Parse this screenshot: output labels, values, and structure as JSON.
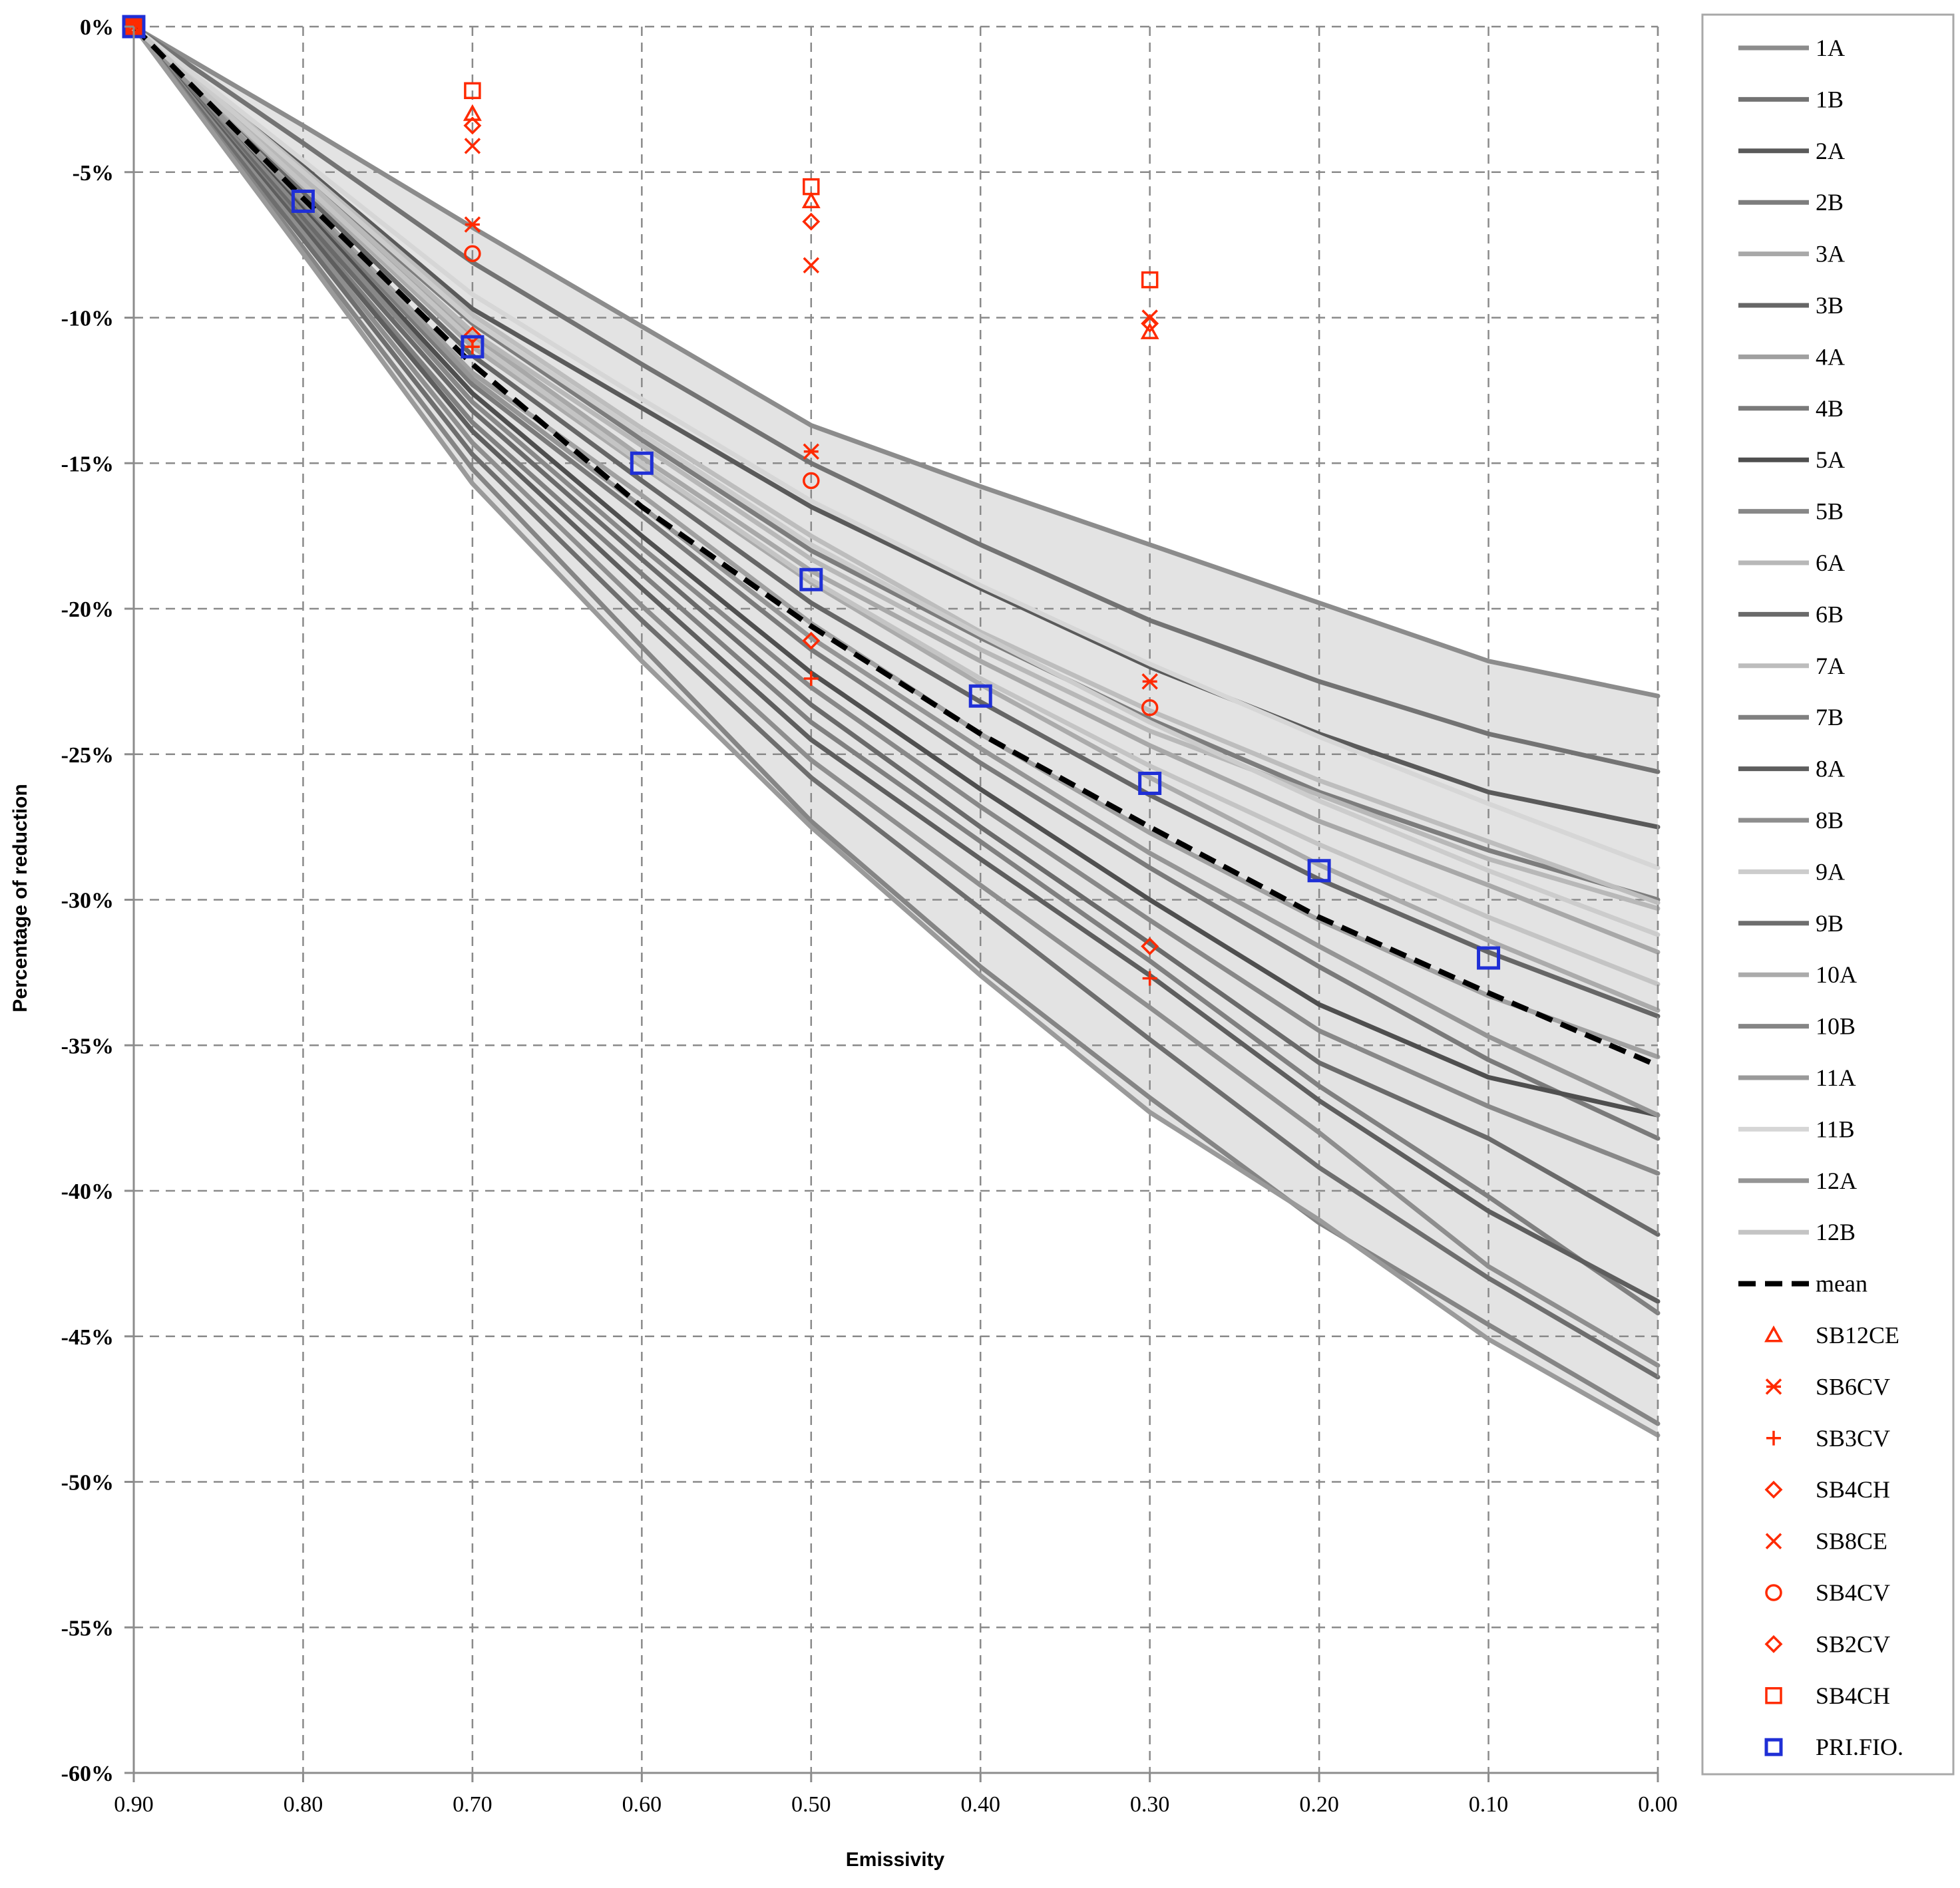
{
  "chart_data": {
    "type": "line",
    "title": "",
    "xlabel": "Emissivity",
    "ylabel": "Percentage of reduction",
    "xlim": [
      0.9,
      0.0
    ],
    "ylim": [
      -60,
      0
    ],
    "x_inverted": true,
    "grid": true,
    "legend_position": "right",
    "x_ticks": [
      "0.90",
      "0.80",
      "0.70",
      "0.60",
      "0.50",
      "0.40",
      "0.30",
      "0.20",
      "0.10",
      "0.00"
    ],
    "y_ticks": [
      "0%",
      "-5%",
      "-10%",
      "-15%",
      "-20%",
      "-25%",
      "-30%",
      "-35%",
      "-40%",
      "-45%",
      "-50%",
      "-55%",
      "-60%"
    ],
    "x": [
      0.9,
      0.8,
      0.7,
      0.6,
      0.5,
      0.4,
      0.3,
      0.2,
      0.1,
      0.0
    ],
    "series": [
      {
        "name": "1A",
        "color": "#8c8c8c",
        "values": [
          0,
          -3.4,
          -6.9,
          -10.3,
          -13.7,
          -15.8,
          -17.8,
          -19.8,
          -21.8,
          -23.0
        ]
      },
      {
        "name": "1B",
        "color": "#737373",
        "values": [
          0,
          -4.0,
          -8.1,
          -11.6,
          -15.0,
          -17.8,
          -20.4,
          -22.5,
          -24.3,
          -25.6
        ]
      },
      {
        "name": "2A",
        "color": "#5a5a5a",
        "values": [
          0,
          -4.8,
          -9.7,
          -13.1,
          -16.5,
          -19.3,
          -22.0,
          -24.3,
          -26.3,
          -27.5
        ]
      },
      {
        "name": "2B",
        "color": "#7d7d7d",
        "values": [
          0,
          -5.1,
          -10.2,
          -14.2,
          -18.0,
          -21.0,
          -23.8,
          -26.3,
          -28.3,
          -30.0
        ]
      },
      {
        "name": "3A",
        "color": "#a8a8a8",
        "values": [
          0,
          -5.3,
          -10.6,
          -14.8,
          -18.7,
          -21.8,
          -24.7,
          -27.3,
          -29.5,
          -31.8
        ]
      },
      {
        "name": "3B",
        "color": "#666666",
        "values": [
          0,
          -5.7,
          -11.3,
          -15.6,
          -19.8,
          -23.2,
          -26.4,
          -29.3,
          -31.8,
          -34.0
        ]
      },
      {
        "name": "4A",
        "color": "#a0a0a0",
        "values": [
          0,
          -5.9,
          -11.9,
          -16.1,
          -20.5,
          -24.3,
          -27.7,
          -30.7,
          -33.3,
          -35.4
        ]
      },
      {
        "name": "4B",
        "color": "#7a7a7a",
        "values": [
          0,
          -6.1,
          -12.3,
          -16.8,
          -21.4,
          -25.3,
          -28.9,
          -32.3,
          -35.5,
          -38.2
        ]
      },
      {
        "name": "5A",
        "color": "#4f4f4f",
        "values": [
          0,
          -6.3,
          -12.6,
          -17.5,
          -22.2,
          -26.2,
          -30.0,
          -33.6,
          -36.1,
          -37.4
        ]
      },
      {
        "name": "5B",
        "color": "#888888",
        "values": [
          0,
          -6.4,
          -12.9,
          -17.9,
          -22.7,
          -26.8,
          -30.7,
          -34.5,
          -37.1,
          -39.4
        ]
      },
      {
        "name": "6A",
        "color": "#b8b8b8",
        "values": [
          0,
          -5.2,
          -10.5,
          -14.4,
          -18.3,
          -21.4,
          -24.2,
          -26.4,
          -28.6,
          -30.3
        ]
      },
      {
        "name": "6B",
        "color": "#6a6a6a",
        "values": [
          0,
          -6.6,
          -13.2,
          -18.3,
          -23.3,
          -27.5,
          -31.5,
          -35.6,
          -38.2,
          -41.5
        ]
      },
      {
        "name": "7A",
        "color": "#bdbdbd",
        "values": [
          0,
          -4.9,
          -9.9,
          -13.8,
          -17.5,
          -20.8,
          -23.5,
          -25.9,
          -28.0,
          -30.1
        ]
      },
      {
        "name": "7B",
        "color": "#808080",
        "values": [
          0,
          -6.8,
          -13.6,
          -18.8,
          -23.9,
          -28.0,
          -32.1,
          -36.4,
          -40.2,
          -44.2
        ]
      },
      {
        "name": "8A",
        "color": "#5e5e5e",
        "values": [
          0,
          -6.9,
          -13.9,
          -19.3,
          -24.5,
          -28.6,
          -32.6,
          -36.9,
          -40.7,
          -43.8
        ]
      },
      {
        "name": "8B",
        "color": "#8e8e8e",
        "values": [
          0,
          -7.1,
          -14.3,
          -19.9,
          -25.2,
          -29.5,
          -33.7,
          -38.0,
          -42.6,
          -46.0
        ]
      },
      {
        "name": "9A",
        "color": "#cccccc",
        "values": [
          0,
          -5.0,
          -10.1,
          -14.0,
          -17.8,
          -20.9,
          -23.9,
          -26.6,
          -29.0,
          -31.2
        ]
      },
      {
        "name": "9B",
        "color": "#6e6e6e",
        "values": [
          0,
          -7.3,
          -14.7,
          -20.4,
          -25.8,
          -30.3,
          -34.8,
          -39.2,
          -43.0,
          -46.4
        ]
      },
      {
        "name": "10A",
        "color": "#ababab",
        "values": [
          0,
          -5.5,
          -11.0,
          -15.1,
          -19.1,
          -22.6,
          -25.8,
          -28.8,
          -31.4,
          -33.8
        ]
      },
      {
        "name": "10B",
        "color": "#858585",
        "values": [
          0,
          -7.6,
          -15.2,
          -21.3,
          -27.3,
          -32.3,
          -36.8,
          -41.1,
          -44.6,
          -48.0
        ]
      },
      {
        "name": "11A",
        "color": "#9a9a9a",
        "values": [
          0,
          -7.8,
          -15.7,
          -21.8,
          -27.5,
          -32.6,
          -37.3,
          -41.0,
          -45.1,
          -48.4
        ]
      },
      {
        "name": "11B",
        "color": "#d6d6d6",
        "values": [
          0,
          -4.6,
          -9.2,
          -12.8,
          -16.3,
          -19.2,
          -21.9,
          -24.4,
          -26.7,
          -28.9
        ]
      },
      {
        "name": "12A",
        "color": "#959595",
        "values": [
          0,
          -6.0,
          -12.1,
          -16.5,
          -21.0,
          -24.8,
          -28.4,
          -31.6,
          -34.7,
          -37.4
        ]
      },
      {
        "name": "12B",
        "color": "#c4c4c4",
        "values": [
          0,
          -5.4,
          -10.8,
          -15.0,
          -19.0,
          -22.4,
          -25.4,
          -28.1,
          -30.6,
          -32.9
        ]
      }
    ],
    "band": {
      "upper_series": "1A",
      "lower_series": "11A",
      "color": "#e0e0e0"
    },
    "mean": {
      "name": "mean",
      "color": "#000000",
      "values": [
        0,
        -5.9,
        -11.6,
        -16.5,
        -20.6,
        -24.3,
        -27.5,
        -30.6,
        -33.2,
        -35.7
      ]
    },
    "markers": [
      {
        "name": "SB12CE",
        "symbol": "triangle",
        "color": "#ff2a00",
        "points": [
          [
            0.9,
            0
          ],
          [
            0.7,
            -3.0
          ],
          [
            0.5,
            -6.0
          ],
          [
            0.3,
            -10.5
          ]
        ]
      },
      {
        "name": "SB6CV",
        "symbol": "asterisk",
        "color": "#ff2a00",
        "points": [
          [
            0.9,
            0
          ],
          [
            0.7,
            -6.8
          ],
          [
            0.5,
            -14.6
          ],
          [
            0.3,
            -22.5
          ]
        ]
      },
      {
        "name": "SB3CV",
        "symbol": "plus",
        "color": "#ff2a00",
        "points": [
          [
            0.9,
            0
          ],
          [
            0.7,
            -11.0
          ],
          [
            0.5,
            -22.4
          ],
          [
            0.3,
            -32.7
          ]
        ]
      },
      {
        "name": "SB4CH",
        "symbol": "diamond",
        "color": "#ff2a00",
        "points": [
          [
            0.9,
            0
          ],
          [
            0.7,
            -3.4
          ],
          [
            0.5,
            -6.7
          ],
          [
            0.3,
            -10.2
          ]
        ]
      },
      {
        "name": "SB8CE",
        "symbol": "cross",
        "color": "#ff2a00",
        "points": [
          [
            0.9,
            0
          ],
          [
            0.7,
            -4.1
          ],
          [
            0.5,
            -8.2
          ],
          [
            0.3,
            -10.0
          ]
        ]
      },
      {
        "name": "SB4CV",
        "symbol": "circle",
        "color": "#ff2a00",
        "points": [
          [
            0.9,
            0
          ],
          [
            0.7,
            -7.8
          ],
          [
            0.5,
            -15.6
          ],
          [
            0.3,
            -23.4
          ]
        ]
      },
      {
        "name": "SB2CV",
        "symbol": "diamond",
        "color": "#ff2a00",
        "points": [
          [
            0.9,
            0
          ],
          [
            0.7,
            -10.6
          ],
          [
            0.5,
            -21.1
          ],
          [
            0.3,
            -31.6
          ]
        ]
      },
      {
        "name": "SB4CH",
        "symbol": "square",
        "color": "#ff2a00",
        "points": [
          [
            0.9,
            0
          ],
          [
            0.7,
            -2.2
          ],
          [
            0.5,
            -5.5
          ],
          [
            0.3,
            -8.7
          ]
        ]
      },
      {
        "name": "PRI.FIO.",
        "symbol": "square",
        "color": "#1f2fd6",
        "points": [
          [
            0.9,
            0
          ],
          [
            0.8,
            -6.0
          ],
          [
            0.7,
            -11.0
          ],
          [
            0.6,
            -15.0
          ],
          [
            0.5,
            -19.0
          ],
          [
            0.4,
            -23.0
          ],
          [
            0.3,
            -26.0
          ],
          [
            0.2,
            -29.0
          ],
          [
            0.1,
            -32.0
          ]
        ]
      }
    ]
  }
}
